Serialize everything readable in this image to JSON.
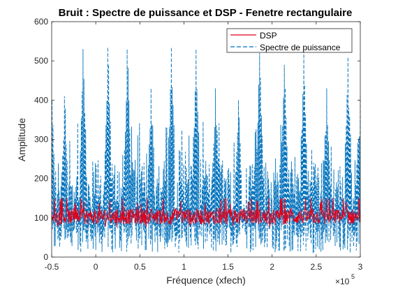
{
  "chart_data": {
    "type": "line",
    "title": "Bruit : Spectre de puissance et DSP - Fenetre rectangulaire",
    "xlabel": "Fréquence (xfech)",
    "ylabel": "Amplitude",
    "x_exponent_label": "×10",
    "x_exponent_power": "5",
    "xlim": [
      -0.5,
      3
    ],
    "ylim": [
      0,
      600
    ],
    "xticks": [
      -0.5,
      0,
      0.5,
      1,
      1.5,
      2,
      2.5,
      3
    ],
    "xtick_labels": [
      "-0.5",
      "0",
      "0.5",
      "1",
      "1.5",
      "2",
      "2.5",
      "3"
    ],
    "yticks": [
      0,
      100,
      200,
      300,
      400,
      500,
      600
    ],
    "ytick_labels": [
      "0",
      "100",
      "200",
      "300",
      "400",
      "500",
      "600"
    ],
    "grid": false,
    "legend_position": "top-right",
    "series": [
      {
        "name": "DSP",
        "color": "#e0001b",
        "line_style": "solid",
        "x_range": [
          -0.5,
          3
        ],
        "num_points": 700,
        "baseline": 103,
        "approx_min": 70,
        "approx_max": 150
      },
      {
        "name": "Spectre de puissance",
        "color": "#0072bd",
        "line_style": "dashed",
        "x_range": [
          -0.5,
          3
        ],
        "num_points": 700,
        "baseline": 100,
        "approx_min": 0,
        "approx_max": 535,
        "peak_x": [
          -0.5,
          -0.35,
          -0.14,
          0.14,
          0.36,
          0.63,
          0.86,
          1.14,
          1.36,
          1.62,
          1.86,
          2.14,
          2.36,
          2.62,
          2.86,
          3.0
        ],
        "peak_y": [
          400,
          410,
          530,
          535,
          530,
          430,
          535,
          530,
          430,
          400,
          520,
          490,
          525,
          430,
          510,
          410
        ]
      }
    ]
  }
}
